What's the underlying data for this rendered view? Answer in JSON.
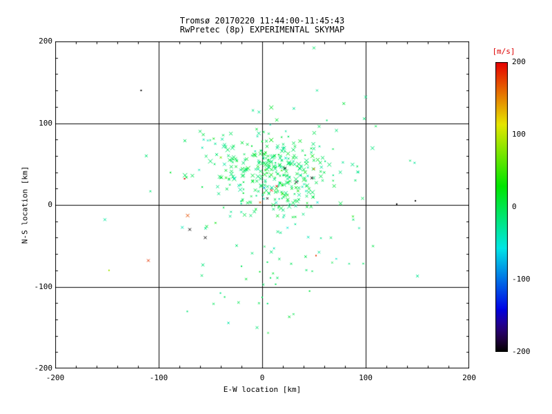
{
  "title": {
    "line1": "Tromsø 20170220 11:44:00-11:45:43",
    "line2": "RwPretec (8p) EXPERIMENTAL SKYMAP"
  },
  "colorbar": {
    "label": "[m/s]",
    "label_color": "#dd0000",
    "min": -200,
    "max": 200,
    "ticks": [
      200,
      100,
      0,
      -100,
      -200
    ]
  },
  "chart_data": {
    "type": "scatter",
    "title": "Tromsø 20170220 11:44:00-11:45:43",
    "subtitle": "RwPretec (8p) EXPERIMENTAL SKYMAP",
    "xlabel": "E-W location [km]",
    "ylabel": "N-S location [km]",
    "xlim": [
      -200,
      200
    ],
    "ylim": [
      -200,
      200
    ],
    "xticks": [
      -200,
      -100,
      0,
      100,
      200
    ],
    "yticks": [
      -200,
      -100,
      0,
      100,
      200
    ],
    "grid": [
      -100,
      0,
      100
    ],
    "minor_tick_step": 20,
    "marker": "x",
    "color_scale": {
      "label": "[m/s]",
      "min": -200,
      "max": 200
    },
    "points": [
      [
        -117,
        140,
        -200,
        2
      ],
      [
        -112,
        60,
        -15,
        4
      ],
      [
        -152,
        -18,
        -30,
        4
      ],
      [
        -72,
        -13,
        170,
        5
      ],
      [
        -110,
        -68,
        180,
        4
      ],
      [
        -70,
        -30,
        -200,
        4
      ],
      [
        -55,
        -40,
        -200,
        4
      ],
      [
        -148,
        -80,
        90,
        2
      ],
      [
        -75,
        32,
        200,
        2
      ],
      [
        52,
        -62,
        180,
        2
      ],
      [
        150,
        -87,
        -25,
        4
      ],
      [
        130,
        1,
        -200,
        2
      ],
      [
        148,
        5,
        -200,
        2
      ],
      [
        97,
        8,
        -5,
        4
      ],
      [
        88,
        -18,
        -10,
        3
      ],
      [
        90,
        30,
        -10,
        3
      ],
      [
        55,
        96,
        -5,
        4
      ],
      [
        100,
        132,
        -20,
        4
      ],
      [
        53,
        140,
        -25,
        3
      ],
      [
        50,
        192,
        -10,
        4
      ],
      [
        -60,
        90,
        -5,
        4
      ],
      [
        -40,
        58,
        70,
        3
      ],
      [
        -5,
        -150,
        -15,
        4
      ],
      [
        -47,
        -121,
        -5,
        3
      ],
      [
        13,
        -97,
        -5,
        2
      ],
      [
        0,
        -113,
        -5,
        2
      ],
      [
        -20,
        -75,
        -5,
        2
      ],
      [
        5,
        -70,
        -5,
        2
      ],
      [
        28,
        -72,
        -5,
        3
      ],
      [
        9,
        18,
        190,
        4
      ],
      [
        14,
        23,
        200,
        3
      ],
      [
        50,
        44,
        150,
        3
      ],
      [
        22,
        45,
        -200,
        4
      ],
      [
        33,
        28,
        -200,
        4
      ],
      [
        48,
        33,
        -200,
        4
      ],
      [
        5,
        8,
        -200,
        3
      ],
      [
        2,
        21,
        -80,
        3
      ],
      [
        -2,
        3,
        160,
        3
      ]
    ],
    "clusters": [
      {
        "count": 300,
        "cx": 15,
        "cy": 42,
        "sx": 28,
        "sy": 24,
        "v_mean": -6,
        "v_sd": 15,
        "smin": 2,
        "smax": 6.5,
        "seed": 7
      },
      {
        "count": 90,
        "cx": 10,
        "cy": 30,
        "sx": 52,
        "sy": 48,
        "v_mean": -12,
        "v_sd": 22,
        "smin": 1.8,
        "smax": 4.5,
        "seed": 21
      },
      {
        "count": 28,
        "cx": 5,
        "cy": -85,
        "sx": 38,
        "sy": 35,
        "v_mean": -8,
        "v_sd": 15,
        "smin": 1.8,
        "smax": 3.5,
        "seed": 33
      }
    ]
  }
}
